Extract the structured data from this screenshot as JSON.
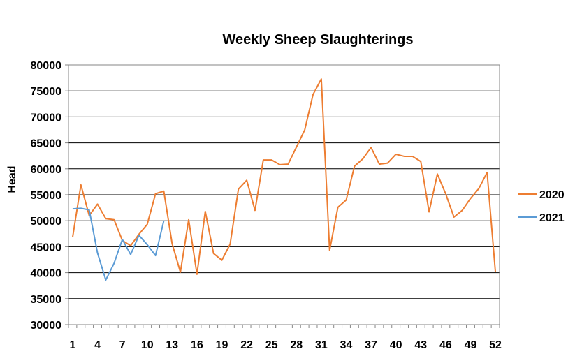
{
  "chart_data": {
    "type": "line",
    "title": "Weekly Sheep Slaughterings",
    "xlabel": "",
    "ylabel": "Head",
    "ylim": [
      30000,
      80000
    ],
    "ytick_step": 5000,
    "xlim": [
      1,
      52
    ],
    "xtick_labels": [
      "1",
      "4",
      "7",
      "10",
      "13",
      "16",
      "19",
      "22",
      "25",
      "28",
      "31",
      "34",
      "37",
      "40",
      "43",
      "46",
      "49",
      "52"
    ],
    "grid": "horizontal",
    "legend_position": "right",
    "series": [
      {
        "name": "2020",
        "color": "#ED7D31",
        "x": [
          1,
          2,
          3,
          4,
          5,
          6,
          7,
          8,
          9,
          10,
          11,
          12,
          13,
          14,
          15,
          16,
          17,
          18,
          19,
          20,
          21,
          22,
          23,
          24,
          25,
          26,
          27,
          28,
          29,
          30,
          31,
          32,
          33,
          34,
          35,
          36,
          37,
          38,
          39,
          40,
          41,
          42,
          43,
          44,
          45,
          46,
          47,
          48,
          49,
          50,
          51,
          52
        ],
        "values": [
          46800,
          56900,
          51000,
          53200,
          50400,
          50200,
          46200,
          45200,
          47400,
          49300,
          55200,
          55700,
          45600,
          40100,
          50200,
          39700,
          51800,
          43700,
          42400,
          45500,
          56100,
          57800,
          52000,
          61700,
          61700,
          60800,
          60900,
          64200,
          67500,
          74300,
          77300,
          44300,
          52600,
          54000,
          60500,
          61900,
          64100,
          60900,
          61100,
          62800,
          62400,
          62400,
          61400,
          51700,
          59000,
          55200,
          50700,
          52000,
          54300,
          56200,
          59300,
          40100
        ]
      },
      {
        "name": "2021",
        "color": "#5B9BD5",
        "x": [
          1,
          2,
          3,
          4,
          5,
          6,
          7,
          8,
          9,
          10,
          11,
          12
        ],
        "values": [
          52300,
          52400,
          52100,
          43800,
          38600,
          41800,
          46400,
          43500,
          47200,
          45400,
          43300,
          50000
        ]
      }
    ]
  }
}
